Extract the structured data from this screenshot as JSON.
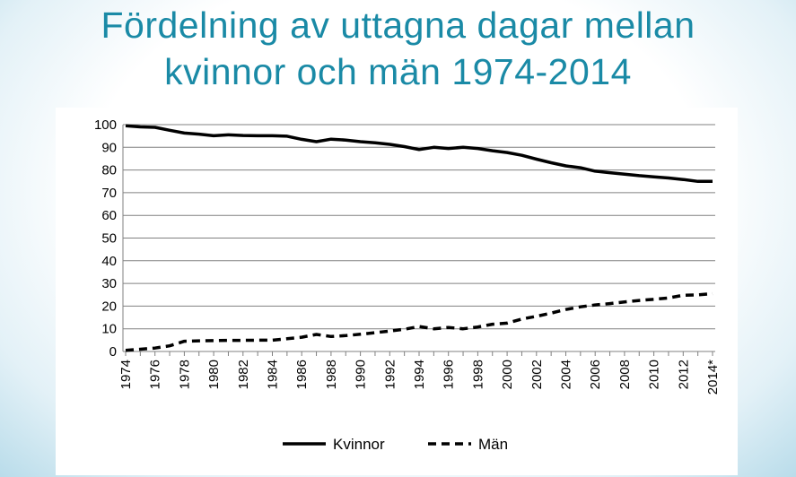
{
  "slide": {
    "title_line1": "Fördelning av uttagna dagar mellan",
    "title_line2": "kvinnor och män 1974-2014"
  },
  "colors": {
    "title": "#1a8aa6",
    "series": "#000000",
    "grid": "#808080"
  },
  "chart_data": {
    "type": "line",
    "title": "",
    "xlabel": "",
    "ylabel": "",
    "ylim": [
      0,
      100
    ],
    "yticks": [
      0,
      10,
      20,
      30,
      40,
      50,
      60,
      70,
      80,
      90,
      100
    ],
    "grid": "horizontal",
    "legend_position": "bottom",
    "x": [
      "1974",
      "1975",
      "1976",
      "1977",
      "1978",
      "1979",
      "1980",
      "1981",
      "1982",
      "1983",
      "1984",
      "1985",
      "1986",
      "1987",
      "1988",
      "1989",
      "1990",
      "1991",
      "1992",
      "1993",
      "1994",
      "1995",
      "1996",
      "1997",
      "1998",
      "1999",
      "2000",
      "2001",
      "2002",
      "2003",
      "2004",
      "2005",
      "2006",
      "2007",
      "2008",
      "2009",
      "2010",
      "2011",
      "2012",
      "2013",
      "2014*"
    ],
    "x_tick_labels": [
      "1974",
      "",
      "1976",
      "",
      "1978",
      "",
      "1980",
      "",
      "1982",
      "",
      "1984",
      "",
      "1986",
      "",
      "1988",
      "",
      "1990",
      "",
      "1992",
      "",
      "1994",
      "",
      "1996",
      "",
      "1998",
      "",
      "2000",
      "",
      "2002",
      "",
      "2004",
      "",
      "2006",
      "",
      "2008",
      "",
      "2010",
      "",
      "2012",
      "",
      "2014*"
    ],
    "series": [
      {
        "name": "Kvinnor",
        "style": "solid",
        "values": [
          99.5,
          99,
          98.8,
          97.5,
          96.3,
          95.8,
          95.1,
          95.5,
          95.2,
          95.1,
          95.1,
          94.9,
          93.5,
          92.5,
          93.6,
          93.2,
          92.5,
          92.0,
          91.3,
          90.3,
          89.0,
          90.0,
          89.5,
          90.0,
          89.5,
          88.5,
          87.7,
          86.5,
          84.8,
          83.2,
          81.8,
          81.0,
          79.5,
          78.8,
          78.2,
          77.5,
          77.0,
          76.5,
          75.8,
          75.0,
          75.0
        ]
      },
      {
        "name": "Män",
        "style": "dashed",
        "values": [
          0.5,
          1.0,
          1.5,
          2.5,
          4.5,
          4.7,
          4.8,
          4.9,
          4.9,
          5.0,
          5.0,
          5.6,
          6.3,
          7.5,
          6.6,
          7.0,
          7.6,
          8.3,
          9.0,
          9.8,
          11.0,
          10.0,
          10.6,
          10.0,
          10.8,
          12.0,
          12.5,
          14.3,
          15.5,
          16.9,
          18.5,
          19.7,
          20.5,
          21.1,
          21.8,
          22.5,
          23.0,
          23.6,
          24.8,
          25.0,
          25.5
        ]
      }
    ]
  }
}
